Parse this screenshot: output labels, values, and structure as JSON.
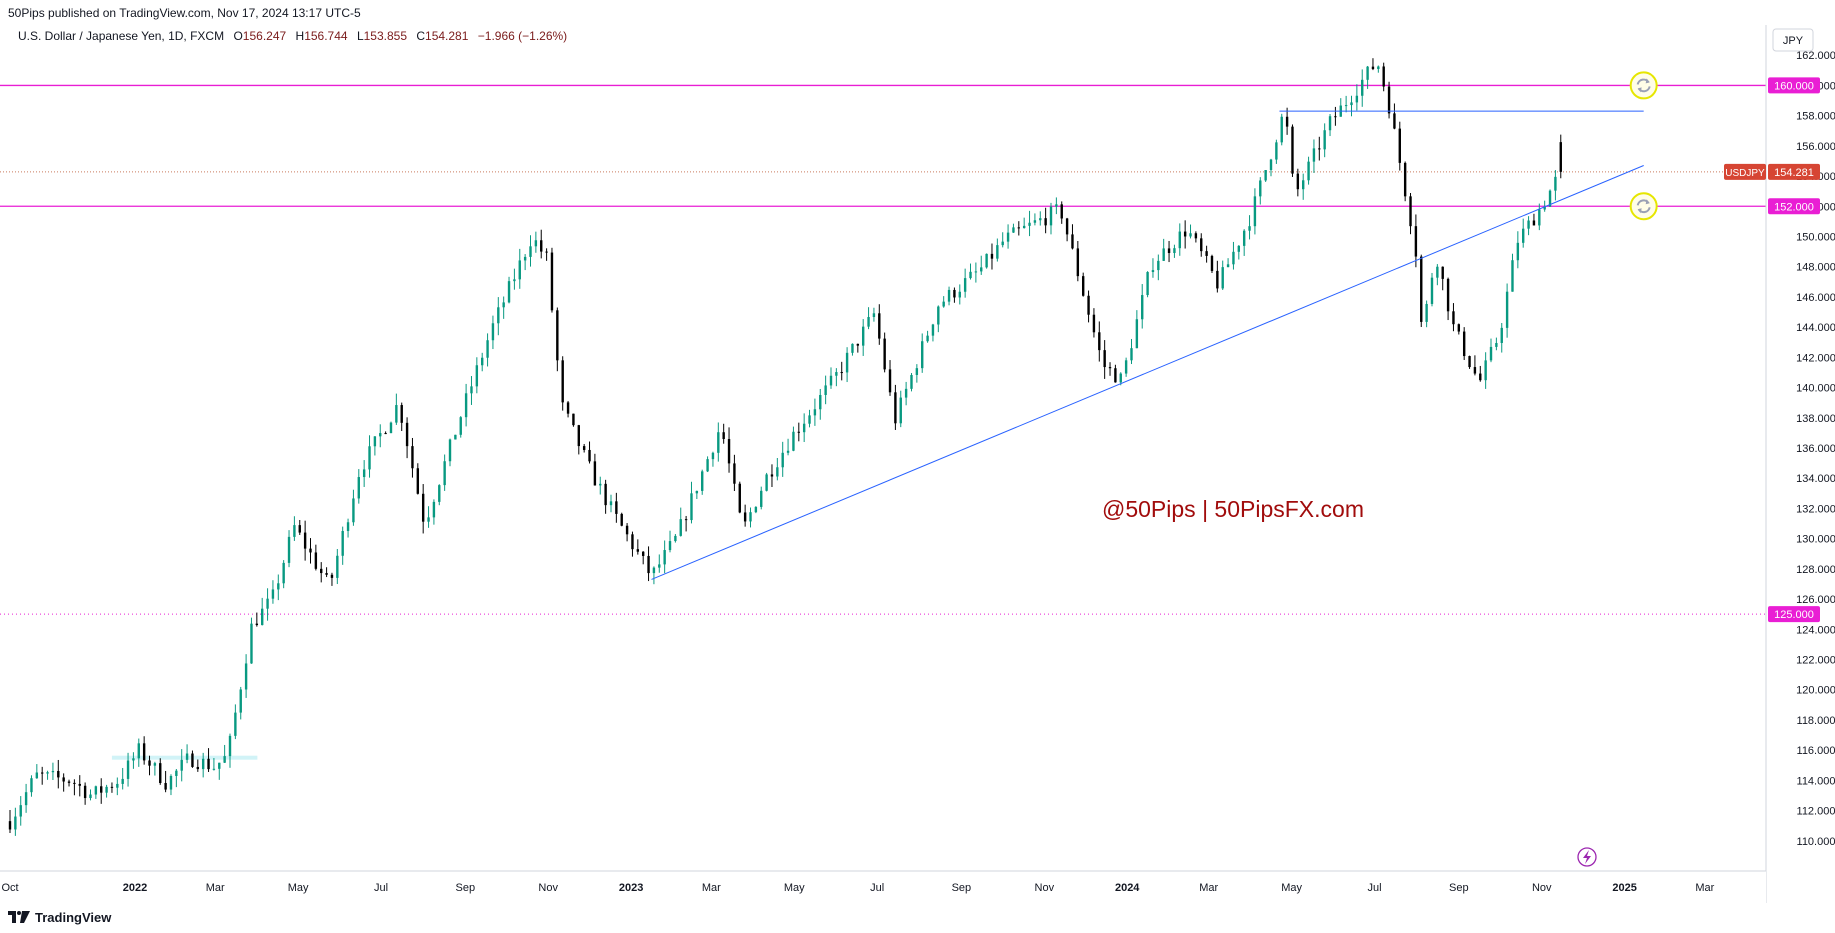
{
  "header": {
    "published": "50Pips published on TradingView.com, Nov 17, 2024 13:17 UTC-5"
  },
  "legend": {
    "symbol": "U.S. Dollar / Japanese Yen, 1D, FXCM",
    "o_label": "O",
    "open": "156.247",
    "h_label": "H",
    "high": "156.744",
    "l_label": "L",
    "low": "153.855",
    "c_label": "C",
    "close": "154.281",
    "change": "−1.966 (−1.26%)"
  },
  "currency": "JPY",
  "footer": {
    "brand": "TradingView"
  },
  "colors": {
    "up": "#089981",
    "down": "#000000",
    "level": "#e91ed4",
    "trend": "#2962ff",
    "watermark": "#a10c0c",
    "last": "#d64533",
    "badge": "#e91ed4"
  },
  "watermark": "@50Pips | 50PipsFX.com",
  "chart_data": {
    "type": "candlestick",
    "symbol": "USDJPY",
    "interval": "1D",
    "ylim": [
      108,
      164
    ],
    "y_ticks": [
      "110.000",
      "112.000",
      "114.000",
      "116.000",
      "118.000",
      "120.000",
      "122.000",
      "124.000",
      "126.000",
      "128.000",
      "130.000",
      "132.000",
      "134.000",
      "136.000",
      "138.000",
      "140.000",
      "142.000",
      "144.000",
      "146.000",
      "148.000",
      "150.000",
      "152.000",
      "154.000",
      "156.000",
      "158.000",
      "160.000",
      "162.000"
    ],
    "x_ticks": [
      {
        "label": "Oct",
        "date": "2021-10-01",
        "bold": false
      },
      {
        "label": "2022",
        "date": "2022-01-01",
        "bold": true
      },
      {
        "label": "Mar",
        "date": "2022-03-01",
        "bold": false
      },
      {
        "label": "May",
        "date": "2022-05-01",
        "bold": false
      },
      {
        "label": "Jul",
        "date": "2022-07-01",
        "bold": false
      },
      {
        "label": "Sep",
        "date": "2022-09-01",
        "bold": false
      },
      {
        "label": "Nov",
        "date": "2022-11-01",
        "bold": false
      },
      {
        "label": "2023",
        "date": "2023-01-01",
        "bold": true
      },
      {
        "label": "Mar",
        "date": "2023-03-01",
        "bold": false
      },
      {
        "label": "May",
        "date": "2023-05-01",
        "bold": false
      },
      {
        "label": "Jul",
        "date": "2023-07-01",
        "bold": false
      },
      {
        "label": "Sep",
        "date": "2023-09-01",
        "bold": false
      },
      {
        "label": "Nov",
        "date": "2023-11-01",
        "bold": false
      },
      {
        "label": "2024",
        "date": "2024-01-01",
        "bold": true
      },
      {
        "label": "Mar",
        "date": "2024-03-01",
        "bold": false
      },
      {
        "label": "May",
        "date": "2024-05-01",
        "bold": false
      },
      {
        "label": "Jul",
        "date": "2024-07-01",
        "bold": false
      },
      {
        "label": "Sep",
        "date": "2024-09-01",
        "bold": false
      },
      {
        "label": "Nov",
        "date": "2024-11-01",
        "bold": false
      },
      {
        "label": "2025",
        "date": "2025-01-01",
        "bold": true
      },
      {
        "label": "Mar",
        "date": "2025-03-01",
        "bold": false
      }
    ],
    "price_path": [
      [
        "2021-10-01",
        111.3
      ],
      [
        "2021-10-20",
        114.3
      ],
      [
        "2021-11-15",
        114.0
      ],
      [
        "2021-11-30",
        113.0
      ],
      [
        "2021-12-20",
        114.0
      ],
      [
        "2022-01-04",
        116.0
      ],
      [
        "2022-01-24",
        113.8
      ],
      [
        "2022-02-10",
        115.5
      ],
      [
        "2022-02-28",
        114.9
      ],
      [
        "2022-03-10",
        115.6
      ],
      [
        "2022-03-28",
        124.3
      ],
      [
        "2022-04-12",
        126.0
      ],
      [
        "2022-04-28",
        130.8
      ],
      [
        "2022-05-24",
        126.8
      ],
      [
        "2022-06-15",
        134.5
      ],
      [
        "2022-06-28",
        136.5
      ],
      [
        "2022-07-14",
        139.0
      ],
      [
        "2022-08-02",
        131.0
      ],
      [
        "2022-08-30",
        138.5
      ],
      [
        "2022-09-20",
        143.8
      ],
      [
        "2022-10-20",
        150.0
      ],
      [
        "2022-10-31",
        148.5
      ],
      [
        "2022-11-11",
        138.8
      ],
      [
        "2022-12-02",
        134.5
      ],
      [
        "2022-12-20",
        131.5
      ],
      [
        "2023-01-16",
        127.5
      ],
      [
        "2023-02-03",
        130.0
      ],
      [
        "2023-03-08",
        137.5
      ],
      [
        "2023-03-24",
        130.5
      ],
      [
        "2023-04-10",
        134.0
      ],
      [
        "2023-05-01",
        137.0
      ],
      [
        "2023-05-30",
        140.5
      ],
      [
        "2023-06-29",
        144.9
      ],
      [
        "2023-07-14",
        137.8
      ],
      [
        "2023-08-15",
        145.5
      ],
      [
        "2023-09-15",
        147.8
      ],
      [
        "2023-10-03",
        149.8
      ],
      [
        "2023-11-13",
        151.8
      ],
      [
        "2023-12-14",
        141.5
      ],
      [
        "2023-12-28",
        140.5
      ],
      [
        "2024-01-19",
        148.2
      ],
      [
        "2024-02-14",
        150.5
      ],
      [
        "2024-03-08",
        146.8
      ],
      [
        "2024-04-01",
        151.4
      ],
      [
        "2024-04-26",
        158.4
      ],
      [
        "2024-05-03",
        152.6
      ],
      [
        "2024-05-29",
        157.5
      ],
      [
        "2024-06-26",
        160.8
      ],
      [
        "2024-07-03",
        161.6
      ],
      [
        "2024-07-11",
        159.0
      ],
      [
        "2024-07-31",
        149.5
      ],
      [
        "2024-08-05",
        143.5
      ],
      [
        "2024-08-15",
        149.0
      ],
      [
        "2024-08-28",
        144.0
      ],
      [
        "2024-09-16",
        140.3
      ],
      [
        "2024-10-01",
        143.6
      ],
      [
        "2024-10-14",
        149.7
      ],
      [
        "2024-11-01",
        152.0
      ],
      [
        "2024-11-15",
        154.3
      ]
    ],
    "candles": {
      "count": 290,
      "seed": 7,
      "end_ohlc": [
        156.247,
        156.744,
        153.855,
        154.281
      ]
    },
    "horizontal_levels": [
      {
        "price": 160.0,
        "label": "160.000",
        "style": "solid"
      },
      {
        "price": 152.0,
        "label": "152.000",
        "style": "solid"
      },
      {
        "price": 125.0,
        "label": "125.000",
        "style": "dotted"
      }
    ],
    "last_price": {
      "price": 154.281,
      "symbol": "USDJPY",
      "label": "154.281"
    },
    "trendlines": [
      {
        "from": [
          "2023-01-16",
          127.3
        ],
        "to": [
          "2025-01-15",
          154.7
        ]
      },
      {
        "from": [
          "2024-04-22",
          158.3
        ],
        "to": [
          "2025-01-15",
          158.3
        ]
      }
    ],
    "range_band": {
      "from": "2021-12-15",
      "to": "2022-04-01",
      "price": 115.5
    }
  }
}
